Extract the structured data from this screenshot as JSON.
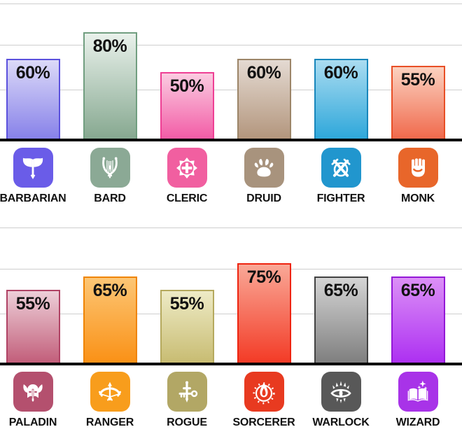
{
  "style": {
    "gridline_color": "#cfcfcf",
    "axis_color": "#000000",
    "text_color": "#111111",
    "background": "#ffffff"
  },
  "chart_data": [
    {
      "type": "bar",
      "title": "",
      "xlabel": "",
      "ylabel": "",
      "ylim": [
        0,
        105
      ],
      "grid": true,
      "legend": false,
      "categories": [
        "BARBARIAN",
        "BARD",
        "CLERIC",
        "DRUID",
        "FIGHTER",
        "MONK"
      ],
      "values": [
        60,
        80,
        50,
        60,
        60,
        55
      ],
      "labels": [
        "60%",
        "80%",
        "50%",
        "60%",
        "60%",
        "55%"
      ],
      "bar_styles": [
        {
          "top": "#dcdaf8",
          "bottom": "#8781e9",
          "border": "#5b51dd"
        },
        {
          "top": "#e9f1eb",
          "bottom": "#86a890",
          "border": "#719e80"
        },
        {
          "top": "#fbcce1",
          "bottom": "#f25ca6",
          "border": "#ee3f94"
        },
        {
          "top": "#e4dad2",
          "bottom": "#b3967d",
          "border": "#9c8568"
        },
        {
          "top": "#aadcf1",
          "bottom": "#2ea7da",
          "border": "#1886bb"
        },
        {
          "top": "#fbd2c0",
          "bottom": "#f0694c",
          "border": "#e84f26"
        }
      ],
      "icons": [
        {
          "name": "barbarian-axe-icon",
          "bg": "#6a5ce8"
        },
        {
          "name": "bard-lyre-icon",
          "bg": "#8ba995"
        },
        {
          "name": "cleric-holy-symbol-icon",
          "bg": "#f15fa0"
        },
        {
          "name": "druid-paw-icon",
          "bg": "#a8937d"
        },
        {
          "name": "fighter-crossed-swords-icon",
          "bg": "#2196ce"
        },
        {
          "name": "monk-fist-icon",
          "bg": "#e8662a"
        }
      ]
    },
    {
      "type": "bar",
      "title": "",
      "xlabel": "",
      "ylabel": "",
      "ylim": [
        0,
        105
      ],
      "grid": true,
      "legend": false,
      "categories": [
        "PALADIN",
        "RANGER",
        "ROGUE",
        "SORCERER",
        "WARLOCK",
        "WIZARD"
      ],
      "values": [
        55,
        65,
        55,
        75,
        65,
        65
      ],
      "labels": [
        "55%",
        "65%",
        "55%",
        "75%",
        "65%",
        "65%"
      ],
      "bar_styles": [
        {
          "top": "#edcfd8",
          "bottom": "#c25e7a",
          "border": "#b04365"
        },
        {
          "top": "#fcc675",
          "bottom": "#fa9116",
          "border": "#ef8404"
        },
        {
          "top": "#eeebc6",
          "bottom": "#c8bc72",
          "border": "#b5a95e"
        },
        {
          "top": "#f9a897",
          "bottom": "#f33b26",
          "border": "#ee2410"
        },
        {
          "top": "#d4d4d4",
          "bottom": "#7f7f7f",
          "border": "#424242"
        },
        {
          "top": "#dc90f6",
          "bottom": "#ad30f2",
          "border": "#9318d6"
        }
      ],
      "icons": [
        {
          "name": "paladin-winged-helmet-icon",
          "bg": "#b4506e"
        },
        {
          "name": "ranger-bow-icon",
          "bg": "#f89d1c"
        },
        {
          "name": "rogue-dagger-key-icon",
          "bg": "#b2a765"
        },
        {
          "name": "sorcerer-flame-icon",
          "bg": "#e83a20"
        },
        {
          "name": "warlock-eldritch-eye-icon",
          "bg": "#585858"
        },
        {
          "name": "wizard-spellbook-icon",
          "bg": "#a833e8"
        }
      ]
    }
  ]
}
